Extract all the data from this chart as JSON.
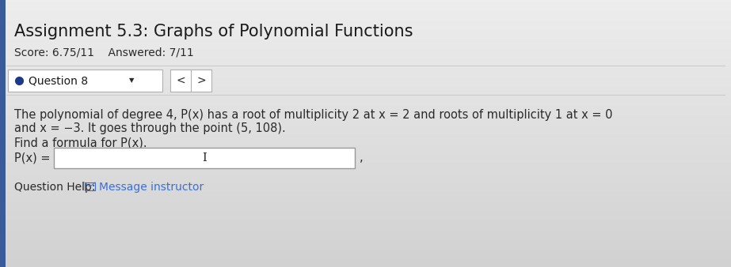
{
  "title": "Assignment 5.3: Graphs of Polynomial Functions",
  "score_line": "Score: 6.75/11    Answered: 7/11",
  "question_label": "Question 8",
  "body_line1": "The polynomial of degree 4, P(x) has a root of multiplicity 2 at x = 2 and roots of multiplicity 1 at x = 0",
  "body_line2": "and x = −3. It goes through the point (5, 108).",
  "body_line3": "Find a formula for P(x).",
  "px_label": "P(x) =",
  "help_text": "Question Help:",
  "help_link": "Message instructor",
  "bg_color_top": "#e8e8e8",
  "bg_color_bottom": "#c8c8c8",
  "white": "#ffffff",
  "border_color": "#b0b0b0",
  "divider_color": "#cccccc",
  "title_color": "#1a1a1a",
  "body_color": "#2a2a2a",
  "blue_sidebar": "#3a5a9a",
  "blue_dot_color": "#1a3a8a",
  "help_blue": "#3a6fd8",
  "title_fontsize": 15,
  "score_fontsize": 10,
  "body_fontsize": 10.5,
  "help_fontsize": 10
}
